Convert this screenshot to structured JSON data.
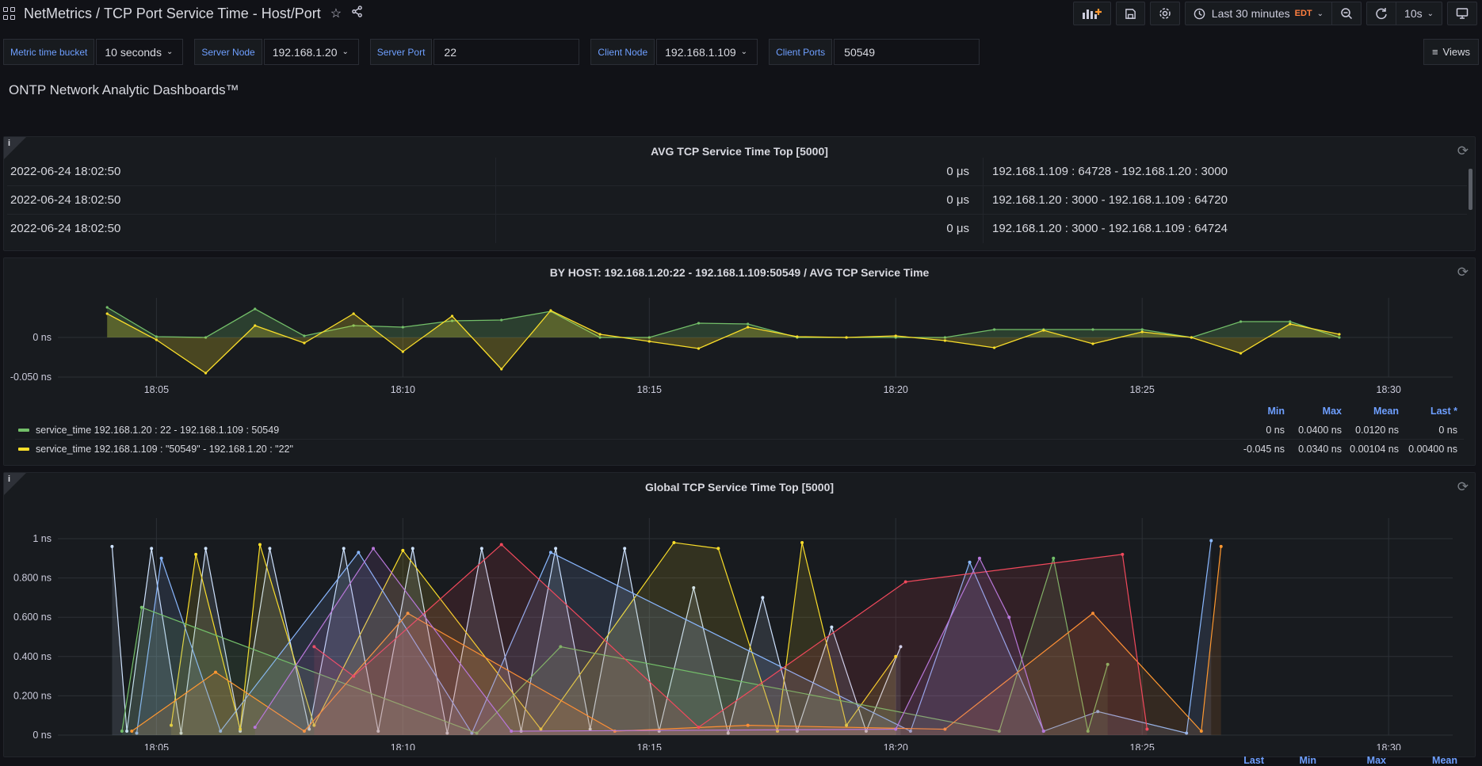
{
  "topbar": {
    "app": "NetMetrics",
    "sep": "/",
    "dashboard": "TCP Port Service Time - Host/Port",
    "time_range": "Last 30 minutes",
    "timezone": "EDT",
    "refresh": "10s",
    "icons": [
      "apps-icon",
      "star-icon",
      "share-icon",
      "add-panel-icon",
      "save-icon",
      "settings-icon",
      "clock-icon",
      "zoom-out-icon",
      "refresh-icon",
      "tv-icon"
    ]
  },
  "vars": {
    "bucket_label": "Metric time bucket",
    "bucket_value": "10 seconds",
    "server_node_label": "Server Node",
    "server_node_value": "192.168.1.20",
    "server_port_label": "Server Port",
    "server_port_value": "22",
    "client_node_label": "Client Node",
    "client_node_value": "192.168.1.109",
    "client_ports_label": "Client Ports",
    "client_ports_value": "50549",
    "views_label": "Views"
  },
  "text_panel": "ONTP Network Analytic Dashboards™",
  "table_panel": {
    "title": "AVG TCP Service Time Top [5000]",
    "info": "i",
    "rows": [
      {
        "time": "2022-06-24 18:02:50",
        "value": "0 μs",
        "flow": "192.168.1.109 : 64728 - 192.168.1.20 : 3000"
      },
      {
        "time": "2022-06-24 18:02:50",
        "value": "0 μs",
        "flow": "192.168.1.20 : 3000 - 192.168.1.109 : 64720"
      },
      {
        "time": "2022-06-24 18:02:50",
        "value": "0 μs",
        "flow": "192.168.1.20 : 3000 - 192.168.1.109 : 64724"
      }
    ]
  },
  "host_panel": {
    "title": "BY HOST: 192.168.1.20:22 - 192.168.1.109:50549 / AVG TCP Service Time",
    "legend_headers": {
      "min": "Min",
      "max": "Max",
      "mean": "Mean",
      "last": "Last *"
    },
    "series": [
      {
        "name": "service_time 192.168.1.20 : 22 - 192.168.1.109 : 50549",
        "color": "#73bf69",
        "min": "0 ns",
        "max": "0.0400 ns",
        "mean": "0.0120 ns",
        "last": "0 ns"
      },
      {
        "name": "service_time 192.168.1.109 : \"50549\" - 192.168.1.20 : \"22\"",
        "color": "#fade2a",
        "min": "-0.045 ns",
        "max": "0.0340 ns",
        "mean": "0.00104 ns",
        "last": "0.00400 ns"
      }
    ]
  },
  "global_panel": {
    "title": "Global TCP Service Time Top [5000]",
    "info": "i",
    "legend_headers": {
      "last": "Last",
      "min": "Min",
      "max": "Max",
      "mean": "Mean"
    }
  },
  "chart_data": [
    {
      "type": "area",
      "title": "BY HOST: 192.168.1.20:22 - 192.168.1.109:50549 / AVG TCP Service Time",
      "x": [
        "18:04",
        "18:05",
        "18:06",
        "18:07",
        "18:08",
        "18:09",
        "18:10",
        "18:11",
        "18:12",
        "18:13",
        "18:14",
        "18:15",
        "18:16",
        "18:17",
        "18:18",
        "18:19",
        "18:20",
        "18:21",
        "18:22",
        "18:23",
        "18:24",
        "18:25",
        "18:26",
        "18:27",
        "18:28",
        "18:29"
      ],
      "x_ticks": [
        "18:05",
        "18:10",
        "18:15",
        "18:20",
        "18:25",
        "18:30"
      ],
      "y_ticks": [
        "0 ns",
        "-0.050 ns"
      ],
      "ylim": [
        -0.05,
        0.05
      ],
      "series": [
        {
          "name": "service_time 192.168.1.20 : 22 - 192.168.1.109 : 50549",
          "color": "#73bf69",
          "values": [
            0.038,
            0.001,
            0.0,
            0.036,
            0.002,
            0.015,
            0.013,
            0.021,
            0.022,
            0.033,
            0.0,
            0.0,
            0.018,
            0.017,
            0.0,
            0.0,
            0.0,
            0.0,
            0.01,
            0.01,
            0.01,
            0.01,
            0.0,
            0.02,
            0.02,
            0.0
          ]
        },
        {
          "name": "service_time 192.168.1.109 : \"50549\" - 192.168.1.20 : \"22\"",
          "color": "#fade2a",
          "values": [
            0.03,
            -0.003,
            -0.045,
            0.015,
            -0.007,
            0.03,
            -0.018,
            0.027,
            -0.04,
            0.034,
            0.004,
            -0.005,
            -0.014,
            0.013,
            0.001,
            0.0,
            0.002,
            -0.004,
            -0.013,
            0.009,
            -0.008,
            0.007,
            0.0,
            -0.02,
            0.017,
            0.004
          ]
        }
      ]
    },
    {
      "type": "line",
      "title": "Global TCP Service Time Top [5000]",
      "x_ticks": [
        "18:05",
        "18:10",
        "18:15",
        "18:20",
        "18:25",
        "18:30"
      ],
      "y_ticks": [
        "1 ns",
        "0.800 ns",
        "0.600 ns",
        "0.400 ns",
        "0.200 ns",
        "0 ns"
      ],
      "ylim": [
        0,
        1
      ],
      "series": [
        {
          "color": "#cfe3ff",
          "x_minutes": [
            4.1,
            4.4,
            4.9,
            5.5,
            6.0,
            6.7,
            7.3,
            8.1,
            8.8,
            9.5,
            10.2,
            10.9,
            11.6,
            12.4,
            13.1,
            13.8,
            14.5,
            15.2,
            15.9,
            16.6,
            17.3,
            18.0,
            18.7,
            19.4,
            20.1
          ],
          "values": [
            0.96,
            0.02,
            0.95,
            0.01,
            0.95,
            0.02,
            0.95,
            0.03,
            0.95,
            0.02,
            0.95,
            0.01,
            0.95,
            0.02,
            0.95,
            0.03,
            0.95,
            0.02,
            0.75,
            0.01,
            0.7,
            0.02,
            0.55,
            0.02,
            0.45
          ]
        },
        {
          "color": "#fade2a",
          "x_minutes": [
            5.3,
            5.8,
            6.7,
            7.1,
            8.2,
            10.0,
            12.8,
            15.5,
            16.4,
            17.6,
            18.1,
            19.0,
            20.0
          ],
          "values": [
            0.05,
            0.92,
            0.03,
            0.97,
            0.05,
            0.94,
            0.03,
            0.98,
            0.95,
            0.02,
            0.98,
            0.05,
            0.4
          ]
        },
        {
          "color": "#8ab8ff",
          "x_minutes": [
            4.6,
            5.1,
            6.3,
            9.1,
            11.4,
            13.0,
            20.3,
            21.5,
            23.0,
            24.1,
            25.9,
            26.4
          ],
          "values": [
            0.01,
            0.9,
            0.02,
            0.93,
            0.01,
            0.93,
            0.02,
            0.88,
            0.02,
            0.12,
            0.01,
            0.99
          ]
        },
        {
          "color": "#73bf69",
          "x_minutes": [
            4.3,
            4.7,
            11.5,
            13.2,
            22.1,
            23.2,
            23.9,
            24.3
          ],
          "values": [
            0.02,
            0.65,
            0.01,
            0.45,
            0.02,
            0.9,
            0.02,
            0.36
          ]
        },
        {
          "color": "#ff9830",
          "x_minutes": [
            4.5,
            6.2,
            8.0,
            10.1,
            14.3,
            17.0,
            21.0,
            24.0,
            26.2,
            26.6
          ],
          "values": [
            0.02,
            0.32,
            0.02,
            0.62,
            0.02,
            0.05,
            0.03,
            0.62,
            0.02,
            0.96
          ]
        },
        {
          "color": "#f2495c",
          "x_minutes": [
            8.2,
            9.0,
            12.0,
            16.0,
            20.2,
            24.6,
            25.1
          ],
          "values": [
            0.45,
            0.3,
            0.97,
            0.04,
            0.78,
            0.92,
            0.03
          ]
        },
        {
          "color": "#b877d9",
          "x_minutes": [
            7.0,
            9.4,
            12.2,
            20.0,
            21.7,
            22.3,
            23.0
          ],
          "values": [
            0.04,
            0.95,
            0.02,
            0.03,
            0.9,
            0.6,
            0.02
          ]
        }
      ]
    }
  ]
}
